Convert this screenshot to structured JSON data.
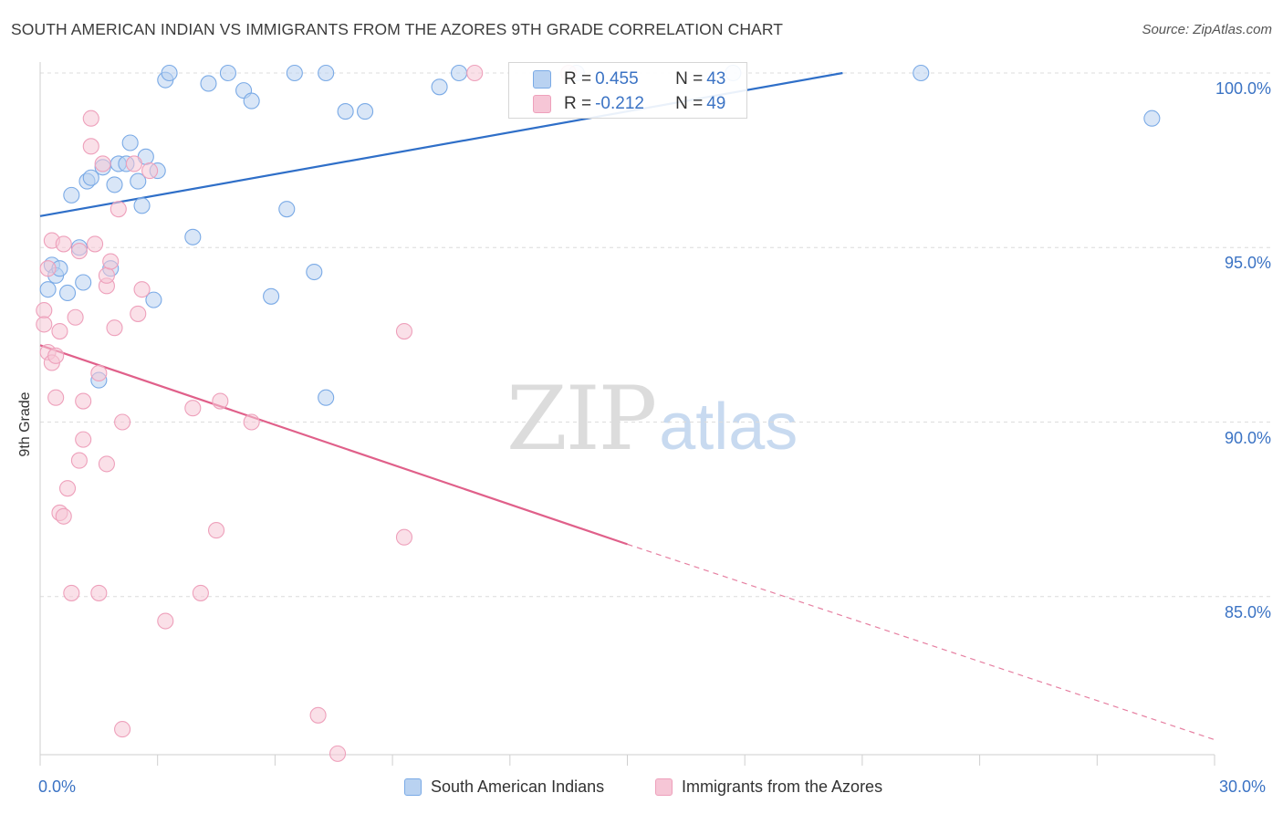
{
  "title": "SOUTH AMERICAN INDIAN VS IMMIGRANTS FROM THE AZORES 9TH GRADE CORRELATION CHART",
  "source": "Source: ZipAtlas.com",
  "watermark": {
    "zip": "ZIP",
    "atlas": "atlas"
  },
  "chart_data": {
    "type": "scatter",
    "ylabel": "9th Grade",
    "xlim": [
      0,
      30
    ],
    "ylim": [
      80.5,
      100.5
    ],
    "x_tick_labels": {
      "min": "0.0%",
      "max": "30.0%"
    },
    "y_ticks": [
      {
        "value": 100,
        "label": "100.0%"
      },
      {
        "value": 95,
        "label": "95.0%"
      },
      {
        "value": 90,
        "label": "90.0%"
      },
      {
        "value": 85,
        "label": "85.0%"
      }
    ],
    "grid": true,
    "legend_position": "bottom",
    "stats": [
      {
        "r_label": "R = ",
        "r_value": "0.455",
        "n_label": "N = ",
        "n_value": "43"
      },
      {
        "r_label": "R = ",
        "r_value": "-0.212",
        "n_label": "N = ",
        "n_value": "49"
      }
    ],
    "series": [
      {
        "name": "South American Indians",
        "color": "#7aaae6",
        "fill": "#b9d2f1",
        "line_color": "#2f6fc8",
        "trend": {
          "x0": 0,
          "y0": 95.9,
          "x1": 20.5,
          "y1": 100.0
        },
        "points": [
          [
            0.2,
            93.8
          ],
          [
            0.3,
            94.5
          ],
          [
            0.4,
            94.2
          ],
          [
            0.5,
            94.4
          ],
          [
            0.7,
            93.7
          ],
          [
            0.8,
            96.5
          ],
          [
            1.0,
            95.0
          ],
          [
            1.1,
            94.0
          ],
          [
            1.2,
            96.9
          ],
          [
            1.3,
            97.0
          ],
          [
            1.5,
            91.2
          ],
          [
            1.6,
            97.3
          ],
          [
            1.8,
            94.4
          ],
          [
            1.9,
            96.8
          ],
          [
            2.0,
            97.4
          ],
          [
            2.2,
            97.4
          ],
          [
            2.3,
            98.0
          ],
          [
            2.5,
            96.9
          ],
          [
            2.6,
            96.2
          ],
          [
            2.7,
            97.6
          ],
          [
            2.9,
            93.5
          ],
          [
            3.0,
            97.2
          ],
          [
            3.2,
            99.8
          ],
          [
            3.3,
            100.0
          ],
          [
            3.9,
            95.3
          ],
          [
            4.3,
            99.7
          ],
          [
            4.8,
            100.0
          ],
          [
            5.2,
            99.5
          ],
          [
            5.4,
            99.2
          ],
          [
            5.9,
            93.6
          ],
          [
            6.3,
            96.1
          ],
          [
            6.5,
            100.0
          ],
          [
            7.0,
            94.3
          ],
          [
            7.3,
            90.7
          ],
          [
            7.3,
            100.0
          ],
          [
            7.8,
            98.9
          ],
          [
            8.3,
            98.9
          ],
          [
            10.2,
            99.6
          ],
          [
            10.7,
            100.0
          ],
          [
            13.7,
            100.0
          ],
          [
            17.7,
            100.0
          ],
          [
            22.5,
            100.0
          ],
          [
            28.4,
            98.7
          ]
        ]
      },
      {
        "name": "Immigrants from the Azores",
        "color": "#eea0bb",
        "fill": "#f6c6d6",
        "line_color": "#e0608a",
        "trend": {
          "x0": 0,
          "y0": 92.2,
          "x1": 15.0,
          "y1": 86.5
        },
        "trend_dashed": {
          "x0": 15.0,
          "y0": 86.5,
          "x1": 30.0,
          "y1": 80.9
        },
        "points": [
          [
            0.1,
            93.2
          ],
          [
            0.1,
            92.8
          ],
          [
            0.2,
            94.4
          ],
          [
            0.2,
            92.0
          ],
          [
            0.3,
            91.7
          ],
          [
            0.3,
            95.2
          ],
          [
            0.4,
            91.9
          ],
          [
            0.4,
            90.7
          ],
          [
            0.5,
            87.4
          ],
          [
            0.5,
            92.6
          ],
          [
            0.6,
            87.3
          ],
          [
            0.6,
            95.1
          ],
          [
            0.7,
            88.1
          ],
          [
            0.8,
            85.1
          ],
          [
            0.9,
            93.0
          ],
          [
            1.0,
            94.9
          ],
          [
            1.0,
            88.9
          ],
          [
            1.1,
            90.6
          ],
          [
            1.1,
            89.5
          ],
          [
            1.3,
            97.9
          ],
          [
            1.3,
            98.7
          ],
          [
            1.4,
            95.1
          ],
          [
            1.5,
            91.4
          ],
          [
            1.5,
            85.1
          ],
          [
            1.6,
            97.4
          ],
          [
            1.7,
            93.9
          ],
          [
            1.7,
            94.2
          ],
          [
            1.7,
            88.8
          ],
          [
            1.8,
            94.6
          ],
          [
            1.9,
            92.7
          ],
          [
            2.0,
            96.1
          ],
          [
            2.1,
            90.0
          ],
          [
            2.1,
            81.2
          ],
          [
            2.4,
            97.4
          ],
          [
            2.5,
            93.1
          ],
          [
            2.6,
            93.8
          ],
          [
            2.8,
            97.2
          ],
          [
            3.2,
            84.3
          ],
          [
            3.9,
            90.4
          ],
          [
            4.1,
            85.1
          ],
          [
            4.5,
            86.9
          ],
          [
            4.6,
            90.6
          ],
          [
            5.4,
            90.0
          ],
          [
            7.1,
            81.6
          ],
          [
            7.6,
            80.5
          ],
          [
            9.3,
            92.6
          ],
          [
            9.3,
            86.7
          ],
          [
            11.1,
            100.0
          ],
          [
            13.5,
            100.0
          ]
        ]
      }
    ]
  }
}
